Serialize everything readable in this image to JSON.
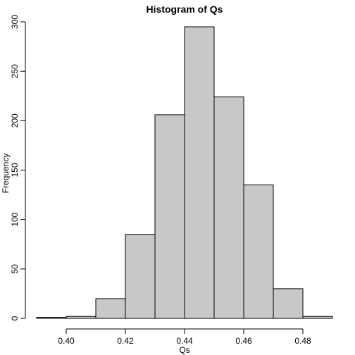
{
  "chart_data": {
    "type": "bar",
    "title": "Histogram of Qs",
    "xlabel": "Qs",
    "ylabel": "Frequency",
    "bins": [
      {
        "from": 0.39,
        "to": 0.4,
        "count": 1
      },
      {
        "from": 0.4,
        "to": 0.41,
        "count": 2
      },
      {
        "from": 0.41,
        "to": 0.42,
        "count": 20
      },
      {
        "from": 0.42,
        "to": 0.43,
        "count": 85
      },
      {
        "from": 0.43,
        "to": 0.44,
        "count": 206
      },
      {
        "from": 0.44,
        "to": 0.45,
        "count": 295
      },
      {
        "from": 0.45,
        "to": 0.46,
        "count": 224
      },
      {
        "from": 0.46,
        "to": 0.47,
        "count": 135
      },
      {
        "from": 0.47,
        "to": 0.48,
        "count": 30
      },
      {
        "from": 0.48,
        "to": 0.49,
        "count": 2
      }
    ],
    "xlim": [
      0.39,
      0.49
    ],
    "ylim": [
      0,
      300
    ],
    "xticks": [
      0.4,
      0.42,
      0.44,
      0.46,
      0.48
    ],
    "xtick_labels": [
      "0.40",
      "0.42",
      "0.44",
      "0.46",
      "0.48"
    ],
    "yticks": [
      0,
      50,
      100,
      150,
      200,
      250,
      300
    ],
    "ytick_labels": [
      "0",
      "50",
      "100",
      "150",
      "200",
      "250",
      "300"
    ],
    "grid": false,
    "colors": {
      "bar_fill": "#c8c8c8",
      "bar_stroke": "#000000"
    }
  }
}
